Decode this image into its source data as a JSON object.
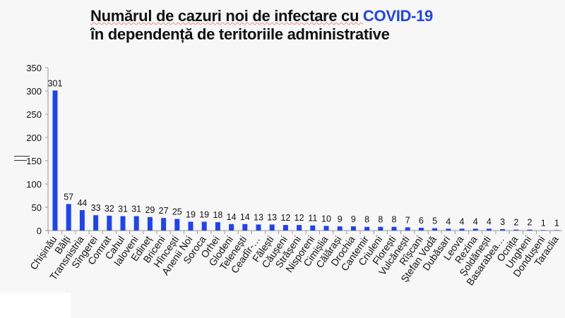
{
  "title": {
    "line1_a": "Numărul de cazuri noi de infectare cu ",
    "line1_b": "COVID-19",
    "line2": "în dependență de teritoriile administrative"
  },
  "colors": {
    "bar": "#1e44f0",
    "accent": "#1e44f0"
  },
  "chart_data": {
    "type": "bar",
    "title": "Numărul de cazuri noi de infectare cu COVID-19 în dependență de teritoriile administrative",
    "xlabel": "",
    "ylabel": "",
    "ylim": [
      0,
      350
    ],
    "yticks": [
      0,
      50,
      100,
      150,
      200,
      250,
      300,
      350
    ],
    "grid": false,
    "categories": [
      "Chișinău",
      "Bălți",
      "Transnistria",
      "Sîngerei",
      "Comrat",
      "Cahul",
      "Ialoveni",
      "Edineț",
      "Briceni",
      "Hîncești",
      "Anenii Noi",
      "Soroca",
      "Orhei",
      "Glodeni",
      "Telenești",
      "Ceadîr-…",
      "Fălești",
      "Căușeni",
      "Strășeni",
      "Nisporeni",
      "Cimișlia",
      "Călărași",
      "Drochia",
      "Cantemir",
      "Criuleni",
      "Florești",
      "Vulcănești",
      "Rîșcani",
      "Ștefan Vodă",
      "Dubăsari",
      "Leova",
      "Rezina",
      "Șoldănești",
      "Basarabea…",
      "Ocnița",
      "Ungheni",
      "Dondușeni",
      "Taraclia"
    ],
    "values": [
      301,
      57,
      44,
      33,
      32,
      31,
      31,
      29,
      27,
      25,
      19,
      19,
      18,
      14,
      14,
      13,
      13,
      12,
      12,
      11,
      10,
      9,
      9,
      8,
      8,
      8,
      7,
      6,
      5,
      4,
      4,
      4,
      4,
      3,
      2,
      2,
      1,
      1
    ]
  }
}
